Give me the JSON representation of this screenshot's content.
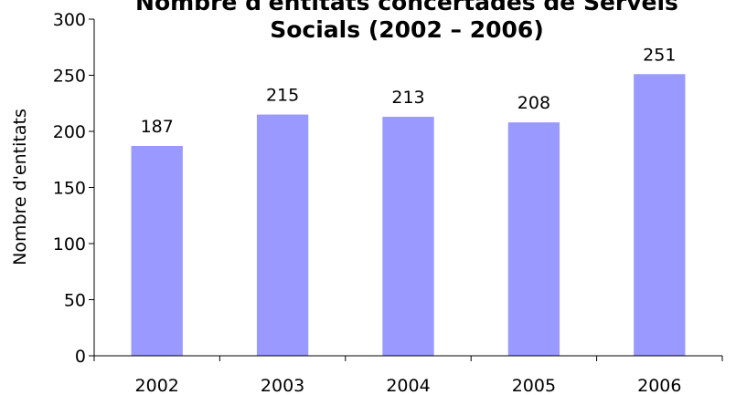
{
  "chart_data": {
    "type": "bar",
    "title_lines": [
      "Nombre d'entitats concertades de Serveis",
      "Socials  (2002 – 2006)"
    ],
    "xlabel": "",
    "ylabel": "Nombre d'entitats",
    "categories": [
      "2002",
      "2003",
      "2004",
      "2005",
      "2006"
    ],
    "values": [
      187,
      215,
      213,
      208,
      251
    ],
    "data_labels": [
      "187",
      "215",
      "213",
      "208",
      "251"
    ],
    "ylim": [
      0,
      300
    ],
    "yticks": [
      0,
      50,
      100,
      150,
      200,
      250,
      300
    ],
    "grid": false,
    "legend": "none",
    "bar_color": "#9999ff"
  }
}
